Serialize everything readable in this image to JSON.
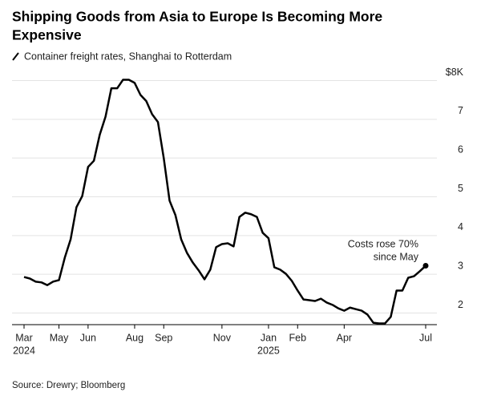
{
  "chart_data": {
    "type": "line",
    "title": [
      "Shipping Goods from Asia to Europe Is Becoming More",
      "Expensive"
    ],
    "subtitle": "Container freight rates, Shanghai to Rotterdam",
    "source": "Source: Drewry; Bloomberg",
    "annotation": [
      "Costs rose 70%",
      "since May"
    ],
    "categories": [
      "Mar",
      null,
      null,
      null,
      null,
      null,
      "May",
      null,
      null,
      null,
      null,
      "Jun",
      null,
      null,
      null,
      null,
      null,
      null,
      null,
      "Aug",
      null,
      null,
      null,
      null,
      "Sep",
      null,
      null,
      null,
      null,
      null,
      null,
      null,
      null,
      null,
      "Nov",
      null,
      null,
      null,
      null,
      null,
      null,
      null,
      "Jan",
      null,
      null,
      null,
      null,
      "Feb",
      null,
      null,
      null,
      null,
      null,
      null,
      null,
      "Apr",
      null,
      null,
      null,
      null,
      null,
      null,
      null,
      null,
      null,
      null,
      null,
      null,
      null,
      "Jul"
    ],
    "category_years": [
      "2024",
      null,
      null,
      null,
      null,
      null,
      null,
      null,
      null,
      null,
      null,
      null,
      null,
      null,
      null,
      null,
      null,
      null,
      null,
      null,
      null,
      null,
      null,
      null,
      null,
      null,
      null,
      null,
      null,
      null,
      null,
      null,
      null,
      null,
      null,
      null,
      null,
      null,
      null,
      null,
      null,
      null,
      "2025",
      null,
      null,
      null,
      null,
      null,
      null,
      null,
      null,
      null,
      null,
      null,
      null,
      null,
      null,
      null,
      null,
      null,
      null,
      null,
      null,
      null,
      null,
      null,
      null,
      null,
      null,
      null
    ],
    "values": [
      2.93,
      2.89,
      2.81,
      2.79,
      2.72,
      2.81,
      2.85,
      3.43,
      3.9,
      4.73,
      5.02,
      5.77,
      5.93,
      6.6,
      7.07,
      7.8,
      7.8,
      8.02,
      8.02,
      7.94,
      7.63,
      7.47,
      7.13,
      6.93,
      6.0,
      4.9,
      4.53,
      3.9,
      3.55,
      3.3,
      3.1,
      2.87,
      3.12,
      3.7,
      3.78,
      3.8,
      3.72,
      4.48,
      4.59,
      4.55,
      4.48,
      4.07,
      3.93,
      3.18,
      3.12,
      3.01,
      2.83,
      2.58,
      2.35,
      2.33,
      2.31,
      2.37,
      2.27,
      2.21,
      2.12,
      2.06,
      2.14,
      2.1,
      2.06,
      1.96,
      1.75,
      1.73,
      1.73,
      1.9,
      2.58,
      2.58,
      2.91,
      2.95,
      3.08,
      3.22
    ],
    "color": "#000000",
    "ylim": [
      1.7,
      8.3
    ],
    "yticks": [
      2,
      3,
      4,
      5,
      6,
      7,
      {
        "value": 8,
        "label": "$8K"
      }
    ],
    "grid": true
  }
}
